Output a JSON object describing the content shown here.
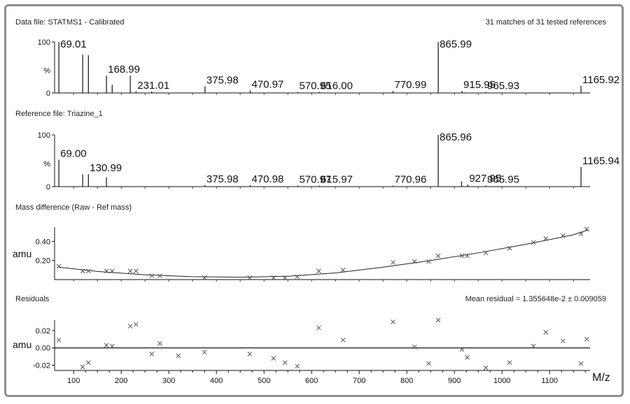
{
  "chart_data": {
    "type": "calibration-report",
    "x_ticks": [
      100,
      200,
      300,
      400,
      500,
      600,
      700,
      800,
      900,
      1000,
      1100
    ],
    "x_axis_label": "M/z",
    "data_file": {
      "title": "Data file: STATMS1 - Calibrated",
      "summary": "31 matches of 31 tested references",
      "y_ticks": [
        "100",
        "%",
        "0"
      ],
      "peaks": [
        {
          "mz": 69.01,
          "rel": 100,
          "label": "69.01"
        },
        {
          "mz": 119.0,
          "rel": 75
        },
        {
          "mz": 131.0,
          "rel": 74
        },
        {
          "mz": 168.99,
          "rel": 34,
          "label": "168.99"
        },
        {
          "mz": 181.0,
          "rel": 16
        },
        {
          "mz": 219.0,
          "rel": 34
        },
        {
          "mz": 231.01,
          "rel": 3,
          "label": "231.01"
        },
        {
          "mz": 264.0,
          "rel": 3
        },
        {
          "mz": 375.98,
          "rel": 13,
          "label": "375.98"
        },
        {
          "mz": 470.97,
          "rel": 5,
          "label": "470.97"
        },
        {
          "mz": 570.95,
          "rel": 2,
          "label": "570.95"
        },
        {
          "mz": 616.0,
          "rel": 2,
          "label": "616.00"
        },
        {
          "mz": 770.99,
          "rel": 4,
          "label": "770.99"
        },
        {
          "mz": 865.99,
          "rel": 100,
          "label": "865.99"
        },
        {
          "mz": 915.95,
          "rel": 4,
          "label": "915.95"
        },
        {
          "mz": 965.93,
          "rel": 2,
          "label": "965.93"
        },
        {
          "mz": 1165.92,
          "rel": 14,
          "label": "1165.92"
        }
      ]
    },
    "reference_file": {
      "title": "Reference file: Triazine_1",
      "y_ticks": [
        "100",
        "%",
        "0"
      ],
      "peaks": [
        {
          "mz": 69.0,
          "rel": 52,
          "label": "69.00"
        },
        {
          "mz": 119.0,
          "rel": 24
        },
        {
          "mz": 130.99,
          "rel": 24,
          "label": "130.99"
        },
        {
          "mz": 169.0,
          "rel": 18
        },
        {
          "mz": 375.98,
          "rel": 3,
          "label": "375.98"
        },
        {
          "mz": 470.98,
          "rel": 3,
          "label": "470.98"
        },
        {
          "mz": 570.97,
          "rel": 2,
          "label": "570.97"
        },
        {
          "mz": 615.97,
          "rel": 2,
          "label": "615.97"
        },
        {
          "mz": 770.96,
          "rel": 2,
          "label": "770.96"
        },
        {
          "mz": 865.96,
          "rel": 100,
          "label": "865.96"
        },
        {
          "mz": 915.0,
          "rel": 10
        },
        {
          "mz": 927.95,
          "rel": 4,
          "label": "927.95"
        },
        {
          "mz": 965.95,
          "rel": 2,
          "label": "965.95"
        },
        {
          "mz": 1165.94,
          "rel": 38,
          "label": "1165.94"
        }
      ]
    },
    "mass_difference": {
      "title": "Mass difference (Raw - Ref mass)",
      "ylabel": "amu",
      "y_ticks": [
        "0.40",
        "0.20"
      ],
      "ylim": [
        0.0,
        0.55
      ],
      "points": [
        [
          69,
          0.14
        ],
        [
          119,
          0.09
        ],
        [
          131,
          0.09
        ],
        [
          169,
          0.09
        ],
        [
          181,
          0.09
        ],
        [
          219,
          0.09
        ],
        [
          231,
          0.09
        ],
        [
          264,
          0.04
        ],
        [
          281,
          0.04
        ],
        [
          375,
          0.02
        ],
        [
          470,
          0.02
        ],
        [
          520,
          0.02
        ],
        [
          544,
          0.02
        ],
        [
          570,
          0.03
        ],
        [
          615,
          0.09
        ],
        [
          666,
          0.1
        ],
        [
          771,
          0.18
        ],
        [
          816,
          0.19
        ],
        [
          846,
          0.19
        ],
        [
          866,
          0.25
        ],
        [
          916,
          0.25
        ],
        [
          927,
          0.25
        ],
        [
          966,
          0.28
        ],
        [
          1016,
          0.33
        ],
        [
          1066,
          0.39
        ],
        [
          1092,
          0.43
        ],
        [
          1128,
          0.46
        ],
        [
          1166,
          0.48
        ],
        [
          1178,
          0.53
        ]
      ],
      "fit": [
        [
          69,
          0.13
        ],
        [
          150,
          0.085
        ],
        [
          250,
          0.05
        ],
        [
          350,
          0.03
        ],
        [
          450,
          0.025
        ],
        [
          550,
          0.035
        ],
        [
          650,
          0.07
        ],
        [
          750,
          0.13
        ],
        [
          850,
          0.2
        ],
        [
          950,
          0.28
        ],
        [
          1050,
          0.37
        ],
        [
          1150,
          0.47
        ],
        [
          1180,
          0.52
        ]
      ]
    },
    "residuals": {
      "title": "Residuals",
      "summary": "Mean residual = 1.355648e-2 ± 0.009059",
      "ylabel": "amu",
      "y_ticks": [
        "0.02",
        "0.00",
        "-0.02"
      ],
      "ylim": [
        -0.026,
        0.032
      ],
      "points": [
        [
          69,
          0.009
        ],
        [
          119,
          -0.022
        ],
        [
          131,
          -0.017
        ],
        [
          169,
          0.003
        ],
        [
          181,
          0.002
        ],
        [
          219,
          0.025
        ],
        [
          231,
          0.027
        ],
        [
          264,
          -0.007
        ],
        [
          281,
          0.005
        ],
        [
          320,
          -0.009
        ],
        [
          375,
          -0.005
        ],
        [
          470,
          -0.007
        ],
        [
          520,
          -0.012
        ],
        [
          544,
          -0.017
        ],
        [
          570,
          -0.021
        ],
        [
          615,
          0.023
        ],
        [
          666,
          0.009
        ],
        [
          771,
          0.03
        ],
        [
          816,
          0.001
        ],
        [
          846,
          -0.018
        ],
        [
          866,
          0.032
        ],
        [
          916,
          -0.002
        ],
        [
          927,
          -0.011
        ],
        [
          966,
          -0.023
        ],
        [
          1016,
          -0.017
        ],
        [
          1066,
          0.002
        ],
        [
          1092,
          0.018
        ],
        [
          1128,
          0.008
        ],
        [
          1166,
          -0.018
        ],
        [
          1178,
          0.01
        ]
      ]
    }
  }
}
